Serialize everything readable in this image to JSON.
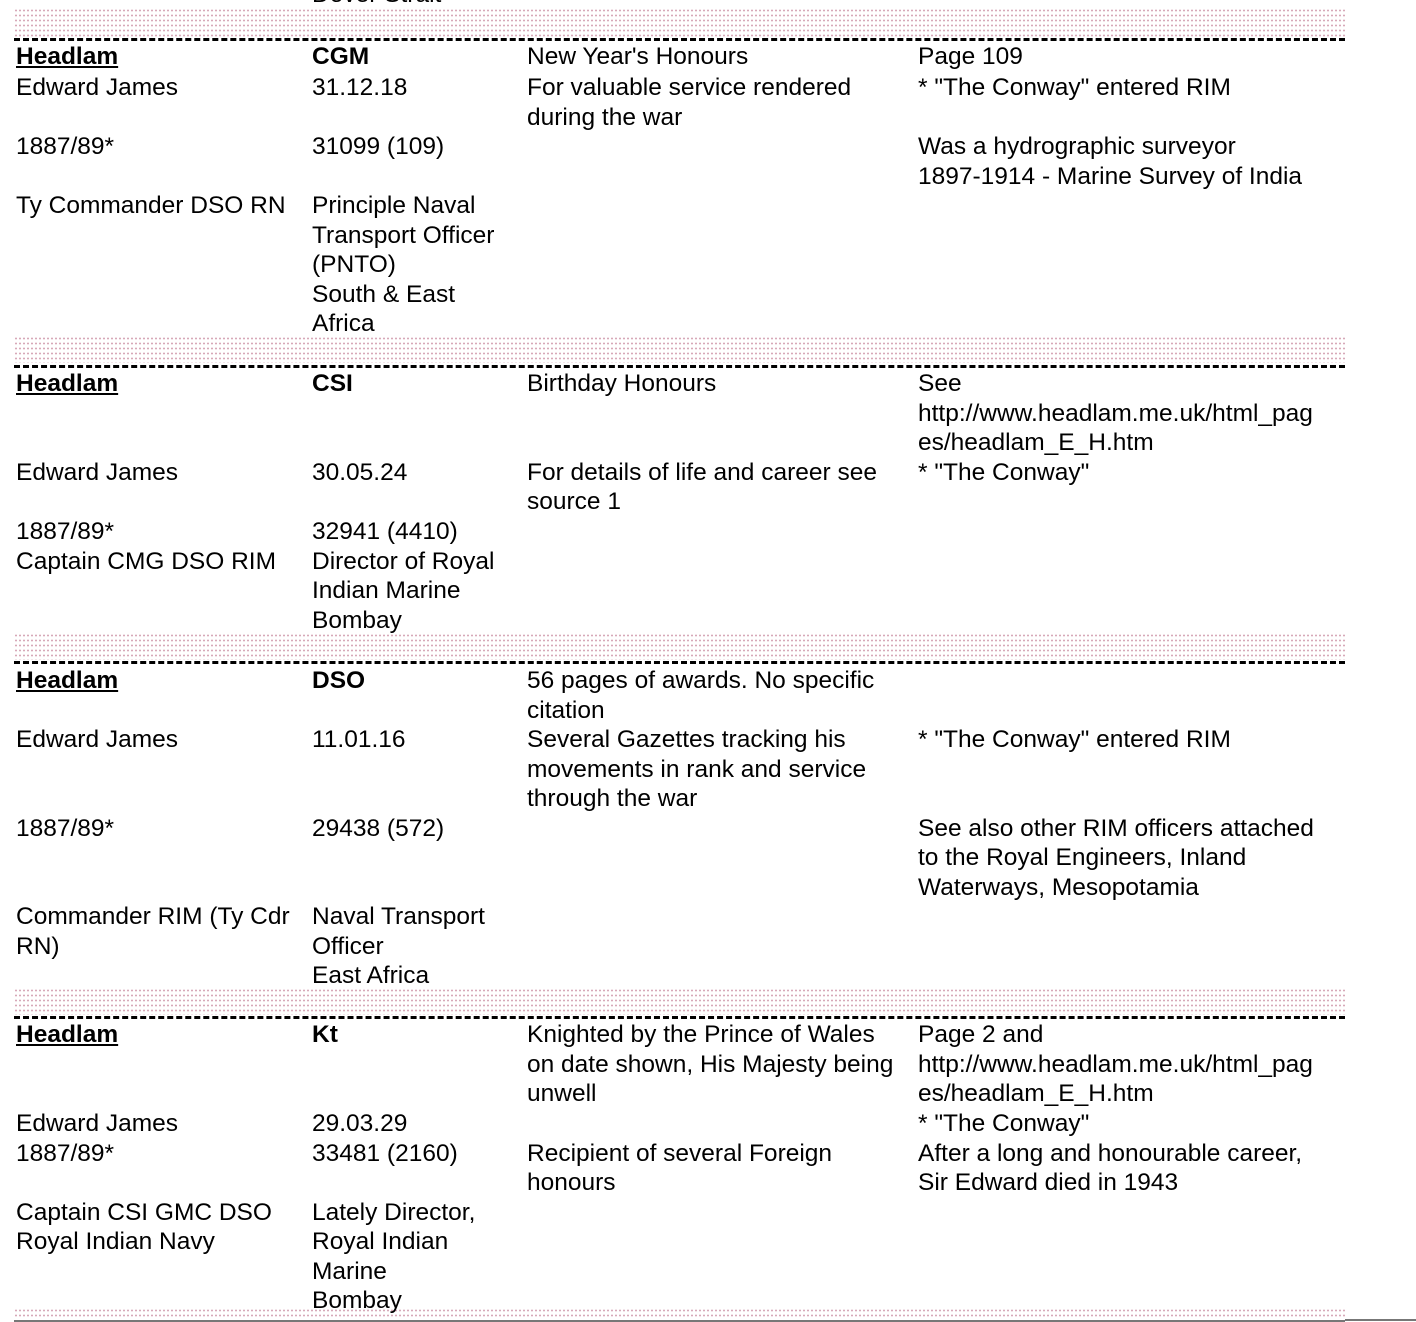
{
  "cutoff_text": "Dover Strait",
  "records": [
    {
      "rows": [
        [
          "Headlam",
          "CGM",
          "New Year's Honours",
          "Page 109"
        ],
        [
          "Edward James",
          "31.12.18",
          "For valuable service rendered\nduring the war",
          "* \"The Conway\" entered RIM"
        ],
        [
          "1887/89*",
          "31099 (109)",
          "",
          "Was a hydrographic surveyor\n1897-1914 - Marine Survey of India"
        ],
        [
          "Ty Commander DSO RN",
          "Principle Naval\nTransport Officer\n(PNTO)\nSouth & East\nAfrica",
          "",
          ""
        ]
      ]
    },
    {
      "rows": [
        [
          "Headlam",
          "CSI",
          "Birthday Honours",
          "See\nhttp://www.headlam.me.uk/html_pag\nes/headlam_E_H.htm"
        ],
        [
          "Edward James",
          "30.05.24",
          "For details of life and career see\nsource 1",
          "* \"The Conway\""
        ],
        [
          "1887/89*",
          "32941 (4410)",
          "",
          ""
        ],
        [
          "Captain CMG DSO RIM",
          "Director of Royal\nIndian Marine\nBombay",
          "",
          ""
        ]
      ]
    },
    {
      "rows": [
        [
          "Headlam",
          "DSO",
          "56 pages of awards.  No specific\ncitation",
          ""
        ],
        [
          "Edward James",
          "11.01.16",
          "Several Gazettes tracking his\nmovements in rank and service\nthrough the war",
          "* \"The Conway\" entered RIM"
        ],
        [
          "1887/89*",
          "29438 (572)",
          "",
          "See also other RIM officers attached\nto the Royal Engineers, Inland\nWaterways, Mesopotamia"
        ],
        [
          "Commander RIM (Ty Cdr\nRN)",
          "Naval Transport\nOfficer\nEast Africa",
          "",
          ""
        ]
      ]
    },
    {
      "rows": [
        [
          "Headlam",
          "Kt",
          "Knighted by the Prince of Wales\non date shown, His Majesty being\nunwell",
          "Page 2 and\nhttp://www.headlam.me.uk/html_pag\nes/headlam_E_H.htm"
        ],
        [
          "Edward James",
          "29.03.29",
          "",
          "* \"The Conway\""
        ],
        [
          "1887/89*",
          "33481 (2160)",
          "Recipient of several Foreign\nhonours",
          "After a long and honourable career,\nSir Edward died in 1943"
        ],
        [
          "Captain CSI GMC DSO\nRoyal Indian Navy",
          "Lately Director,\nRoyal Indian\nMarine\nBombay",
          "",
          ""
        ]
      ]
    }
  ]
}
